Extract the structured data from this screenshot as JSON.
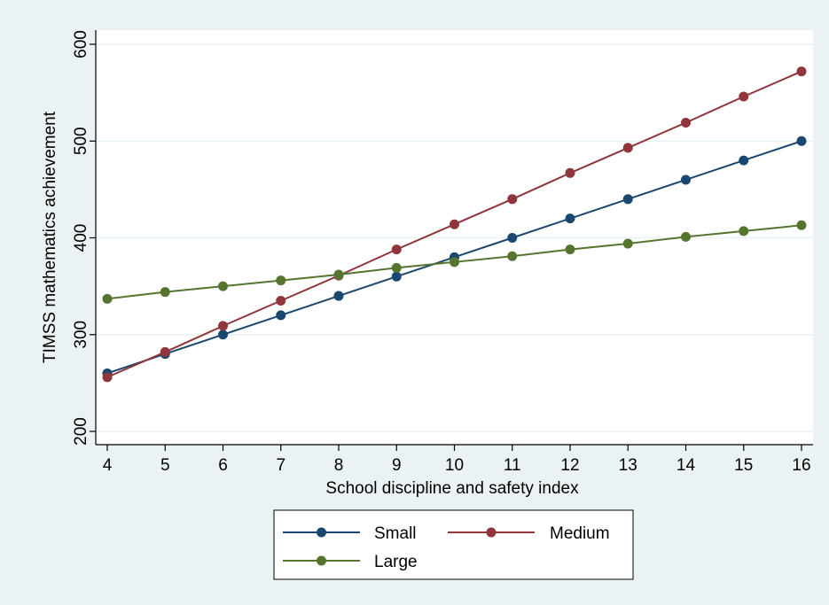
{
  "chart_data": {
    "type": "line",
    "title": "",
    "xlabel": "School discipline and safety index",
    "ylabel": "TIMSS mathematics achievement",
    "x": [
      4,
      5,
      6,
      7,
      8,
      9,
      10,
      11,
      12,
      13,
      14,
      15,
      16
    ],
    "xticks": [
      "4",
      "5",
      "6",
      "7",
      "8",
      "9",
      "10",
      "11",
      "12",
      "13",
      "14",
      "15",
      "16"
    ],
    "yticks": [
      "200",
      "300",
      "400",
      "500",
      "600"
    ],
    "xlim": [
      4,
      16
    ],
    "ylim": [
      200,
      600
    ],
    "grid": "horizontal",
    "legend_position": "bottom",
    "series": [
      {
        "name": "Small",
        "color": "#1a476f",
        "values": [
          260,
          280,
          300,
          320,
          340,
          360,
          380,
          400,
          420,
          440,
          460,
          480,
          500
        ]
      },
      {
        "name": "Medium",
        "color": "#90353b",
        "values": [
          256,
          282,
          309,
          335,
          361,
          388,
          414,
          440,
          467,
          493,
          519,
          546,
          572
        ]
      },
      {
        "name": "Large",
        "color": "#55752f",
        "values": [
          337,
          344,
          350,
          356,
          362,
          369,
          375,
          381,
          388,
          394,
          401,
          407,
          413
        ]
      }
    ]
  }
}
